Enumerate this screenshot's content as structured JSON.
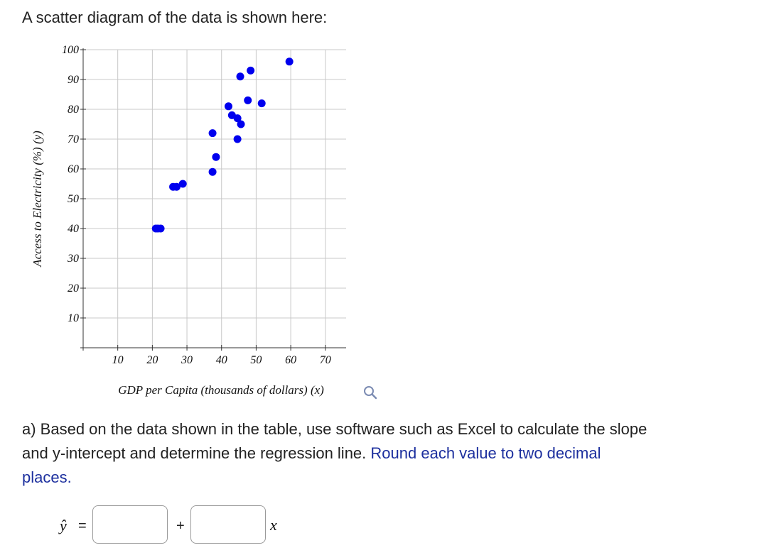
{
  "intro_text": "A scatter diagram of the data is shown here:",
  "chart_data": {
    "type": "scatter",
    "title": "",
    "xlabel": "GDP per Capita (thousands of dollars) (x)",
    "ylabel": "Access to Electricity (%) (y)",
    "xlim": [
      0,
      76
    ],
    "ylim": [
      0,
      100
    ],
    "x_ticks": [
      "10",
      "20",
      "30",
      "40",
      "50",
      "60",
      "70"
    ],
    "y_ticks": [
      "10",
      "20",
      "30",
      "40",
      "50",
      "60",
      "70",
      "80",
      "90",
      "100"
    ],
    "grid": true,
    "point_color": "#0000ee",
    "points": [
      {
        "x": 21.0,
        "y": 40
      },
      {
        "x": 21.6,
        "y": 40
      },
      {
        "x": 22.4,
        "y": 40
      },
      {
        "x": 26.0,
        "y": 54
      },
      {
        "x": 27.0,
        "y": 54
      },
      {
        "x": 28.8,
        "y": 55
      },
      {
        "x": 37.4,
        "y": 72
      },
      {
        "x": 38.4,
        "y": 64
      },
      {
        "x": 37.4,
        "y": 59
      },
      {
        "x": 42.0,
        "y": 81
      },
      {
        "x": 43.0,
        "y": 78
      },
      {
        "x": 44.6,
        "y": 77
      },
      {
        "x": 45.6,
        "y": 75
      },
      {
        "x": 44.6,
        "y": 70
      },
      {
        "x": 45.4,
        "y": 91
      },
      {
        "x": 48.4,
        "y": 93
      },
      {
        "x": 47.6,
        "y": 83
      },
      {
        "x": 51.6,
        "y": 82
      },
      {
        "x": 59.6,
        "y": 96
      }
    ]
  },
  "zoom_icon": "magnifier-icon",
  "question": {
    "prefix": "a) Based on the data shown in the table, use software such as Excel to calculate the slope and y-intercept and determine the regression line. ",
    "highlight": "Round each value to two decimal places."
  },
  "equation": {
    "lhs": "ŷ",
    "equals": "=",
    "slope_value": "",
    "plus": "+",
    "intercept_value": "",
    "variable": "x"
  }
}
